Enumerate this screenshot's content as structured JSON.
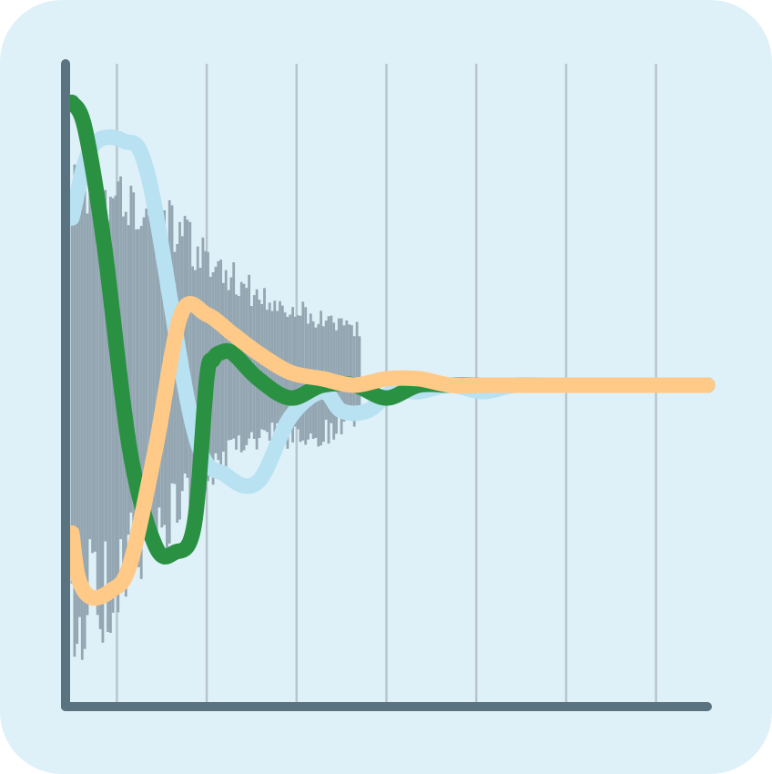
{
  "colors": {
    "background": "#dff1f8",
    "axis": "#5a7381",
    "grid": "#b9c5cc",
    "noise": "#93a6b1",
    "series_light_blue": "#b8e1f2",
    "series_green": "#2a9142",
    "series_orange": "#ffc988"
  },
  "chart_data": {
    "type": "line",
    "title": "",
    "xlabel": "",
    "ylabel": "",
    "xlim": [
      0,
      100
    ],
    "ylim": [
      -50,
      50
    ],
    "grid": "vertical",
    "x_gridlines": [
      8,
      22,
      36,
      50,
      64,
      78,
      92
    ],
    "legend": "none",
    "series": [
      {
        "kind": "noise-bars",
        "color_key": "noise",
        "x_start": 1,
        "x_end": 46,
        "x_step": 0.4,
        "envelope": [
          [
            1,
            36
          ],
          [
            12,
            33
          ],
          [
            20,
            25
          ],
          [
            30,
            16
          ],
          [
            40,
            12
          ],
          [
            46,
            10
          ]
        ],
        "dip_amplitude": [
          [
            1,
            47
          ],
          [
            8,
            38
          ],
          [
            20,
            21
          ],
          [
            30,
            10
          ],
          [
            40,
            10
          ],
          [
            46,
            6
          ]
        ]
      },
      {
        "kind": "line",
        "color_key": "series_light_blue",
        "x": [
          1,
          4,
          9,
          13,
          20,
          25,
          30,
          35,
          40,
          43,
          47,
          51,
          55,
          60,
          65,
          70,
          75,
          80,
          85,
          100
        ],
        "y": [
          26,
          37,
          38,
          32,
          -7,
          -14,
          -15,
          -5,
          -1,
          -4,
          -4,
          -1,
          -1,
          0,
          -1,
          0,
          0,
          0,
          0,
          0
        ]
      },
      {
        "kind": "line",
        "color_key": "series_green",
        "x": [
          1,
          3,
          6,
          10,
          14,
          17,
          20,
          22,
          23,
          24,
          26,
          30,
          35,
          40,
          45,
          50,
          55,
          60,
          65,
          70,
          75,
          100
        ],
        "y": [
          44,
          40,
          22,
          -10,
          -25,
          -26,
          -22,
          1,
          4,
          5,
          5,
          1,
          -2,
          0,
          0,
          -2,
          0,
          0,
          0,
          0,
          0,
          0
        ]
      },
      {
        "kind": "line",
        "color_key": "series_orange",
        "x": [
          1,
          2,
          4,
          7,
          10,
          14,
          18,
          22,
          26,
          30,
          35,
          40,
          45,
          50,
          55,
          60,
          65,
          70,
          75,
          85,
          100
        ],
        "y": [
          -23,
          -30,
          -33,
          -32,
          -28,
          -10,
          11,
          11,
          8,
          5,
          2,
          1,
          0,
          1,
          1,
          0,
          0,
          0,
          0,
          0,
          0
        ]
      }
    ]
  }
}
